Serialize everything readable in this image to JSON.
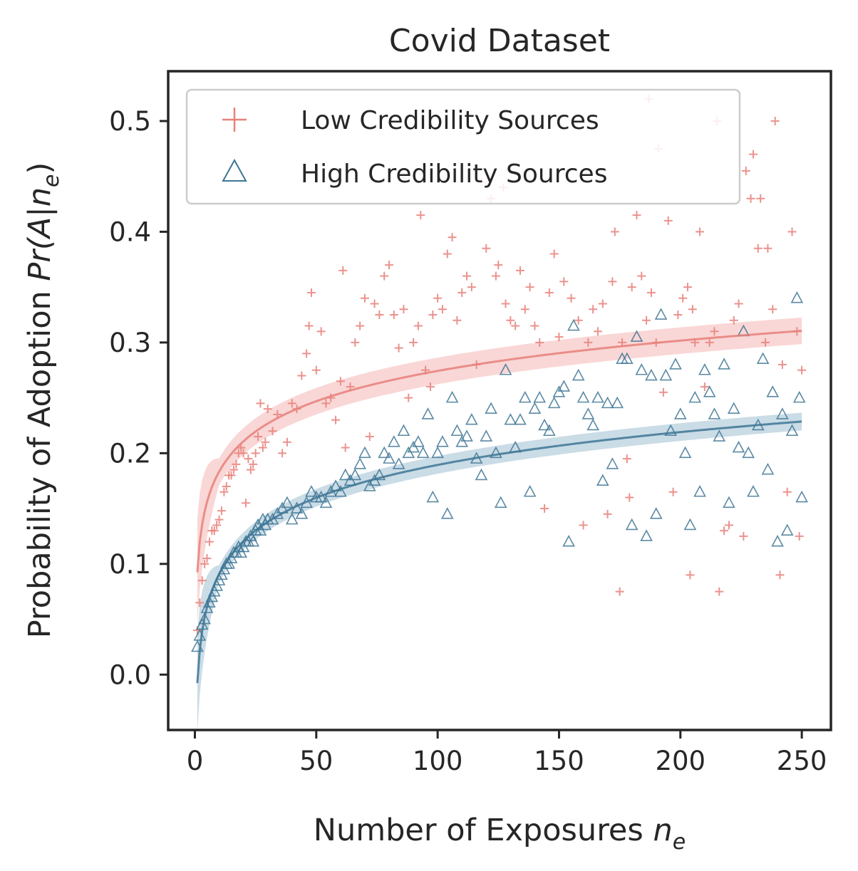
{
  "chart_data": {
    "type": "scatter",
    "title": "Covid Dataset",
    "xlabel": "Number of Exposures",
    "xlabel_var": "n",
    "xlabel_sub": "e",
    "ylabel": "Probability of Adoption",
    "ylabel_var": "Pr(A|n",
    "ylabel_sub": "e",
    "ylabel_close": ")",
    "xlim": [
      -11,
      262
    ],
    "ylim": [
      -0.05,
      0.545
    ],
    "xticks": [
      0,
      50,
      100,
      150,
      200,
      250
    ],
    "xtick_labels": [
      "0",
      "50",
      "100",
      "150",
      "200",
      "250"
    ],
    "yticks": [
      0.0,
      0.1,
      0.2,
      0.3,
      0.4,
      0.5
    ],
    "ytick_labels": [
      "0.0",
      "0.1",
      "0.2",
      "0.3",
      "0.4",
      "0.5"
    ],
    "legend_position": "upper-left",
    "colors": {
      "low": "#e8807a",
      "high": "#3e7694",
      "low_band": "#f4b6b4",
      "high_band": "#9fbfd1"
    },
    "series": [
      {
        "name": "Low Credibility Sources",
        "marker": "plus",
        "points": [
          [
            1,
            0.04
          ],
          [
            2,
            0.065
          ],
          [
            3,
            0.085
          ],
          [
            4,
            0.1
          ],
          [
            5,
            0.105
          ],
          [
            6,
            0.12
          ],
          [
            7,
            0.13
          ],
          [
            8,
            0.13
          ],
          [
            9,
            0.135
          ],
          [
            10,
            0.14
          ],
          [
            11,
            0.148
          ],
          [
            12,
            0.165
          ],
          [
            13,
            0.17
          ],
          [
            14,
            0.18
          ],
          [
            15,
            0.18
          ],
          [
            16,
            0.185
          ],
          [
            17,
            0.19
          ],
          [
            18,
            0.2
          ],
          [
            19,
            0.205
          ],
          [
            20,
            0.2
          ],
          [
            21,
            0.155
          ],
          [
            22,
            0.195
          ],
          [
            23,
            0.185
          ],
          [
            24,
            0.19
          ],
          [
            25,
            0.2
          ],
          [
            26,
            0.215
          ],
          [
            27,
            0.245
          ],
          [
            28,
            0.205
          ],
          [
            29,
            0.21
          ],
          [
            30,
            0.24
          ],
          [
            32,
            0.22
          ],
          [
            34,
            0.235
          ],
          [
            36,
            0.2
          ],
          [
            38,
            0.21
          ],
          [
            40,
            0.245
          ],
          [
            42,
            0.24
          ],
          [
            44,
            0.27
          ],
          [
            46,
            0.29
          ],
          [
            47,
            0.315
          ],
          [
            48,
            0.345
          ],
          [
            50,
            0.275
          ],
          [
            52,
            0.31
          ],
          [
            54,
            0.245
          ],
          [
            56,
            0.25
          ],
          [
            58,
            0.23
          ],
          [
            60,
            0.265
          ],
          [
            61,
            0.365
          ],
          [
            62,
            0.205
          ],
          [
            64,
            0.26
          ],
          [
            66,
            0.3
          ],
          [
            68,
            0.315
          ],
          [
            70,
            0.34
          ],
          [
            72,
            0.215
          ],
          [
            74,
            0.335
          ],
          [
            76,
            0.325
          ],
          [
            78,
            0.36
          ],
          [
            80,
            0.37
          ],
          [
            82,
            0.325
          ],
          [
            84,
            0.295
          ],
          [
            86,
            0.33
          ],
          [
            88,
            0.25
          ],
          [
            90,
            0.3
          ],
          [
            92,
            0.315
          ],
          [
            93,
            0.415
          ],
          [
            95,
            0.275
          ],
          [
            97,
            0.26
          ],
          [
            98,
            0.325
          ],
          [
            100,
            0.34
          ],
          [
            102,
            0.33
          ],
          [
            104,
            0.38
          ],
          [
            106,
            0.395
          ],
          [
            108,
            0.32
          ],
          [
            110,
            0.345
          ],
          [
            112,
            0.36
          ],
          [
            114,
            0.35
          ],
          [
            116,
            0.28
          ],
          [
            118,
            0.445
          ],
          [
            120,
            0.385
          ],
          [
            122,
            0.43
          ],
          [
            124,
            0.36
          ],
          [
            125,
            0.37
          ],
          [
            127,
            0.44
          ],
          [
            128,
            0.335
          ],
          [
            130,
            0.32
          ],
          [
            132,
            0.315
          ],
          [
            134,
            0.365
          ],
          [
            136,
            0.33
          ],
          [
            138,
            0.35
          ],
          [
            140,
            0.315
          ],
          [
            142,
            0.3
          ],
          [
            144,
            0.15
          ],
          [
            146,
            0.345
          ],
          [
            148,
            0.38
          ],
          [
            150,
            0.305
          ],
          [
            152,
            0.355
          ],
          [
            155,
            0.34
          ],
          [
            158,
            0.32
          ],
          [
            160,
            0.135
          ],
          [
            162,
            0.3
          ],
          [
            164,
            0.33
          ],
          [
            166,
            0.31
          ],
          [
            168,
            0.335
          ],
          [
            170,
            0.145
          ],
          [
            172,
            0.355
          ],
          [
            173,
            0.4
          ],
          [
            175,
            0.075
          ],
          [
            176,
            0.3
          ],
          [
            178,
            0.195
          ],
          [
            179,
            0.16
          ],
          [
            180,
            0.35
          ],
          [
            182,
            0.415
          ],
          [
            184,
            0.36
          ],
          [
            186,
            0.32
          ],
          [
            187,
            0.52
          ],
          [
            188,
            0.345
          ],
          [
            190,
            0.3
          ],
          [
            191,
            0.475
          ],
          [
            193,
            0.255
          ],
          [
            195,
            0.41
          ],
          [
            197,
            0.165
          ],
          [
            199,
            0.325
          ],
          [
            201,
            0.34
          ],
          [
            203,
            0.35
          ],
          [
            204,
            0.09
          ],
          [
            205,
            0.33
          ],
          [
            206,
            0.3
          ],
          [
            208,
            0.4
          ],
          [
            210,
            0.26
          ],
          [
            212,
            0.3
          ],
          [
            214,
            0.31
          ],
          [
            215,
            0.5
          ],
          [
            216,
            0.075
          ],
          [
            218,
            0.13
          ],
          [
            220,
            0.135
          ],
          [
            222,
            0.32
          ],
          [
            224,
            0.335
          ],
          [
            226,
            0.125
          ],
          [
            227,
            0.455
          ],
          [
            229,
            0.43
          ],
          [
            230,
            0.47
          ],
          [
            232,
            0.385
          ],
          [
            233,
            0.43
          ],
          [
            235,
            0.3
          ],
          [
            236,
            0.385
          ],
          [
            238,
            0.33
          ],
          [
            239,
            0.5
          ],
          [
            241,
            0.09
          ],
          [
            242,
            0.28
          ],
          [
            244,
            0.165
          ],
          [
            246,
            0.4
          ],
          [
            248,
            0.31
          ],
          [
            249,
            0.125
          ],
          [
            250,
            0.275
          ]
        ]
      },
      {
        "name": "High Credibility Sources",
        "marker": "triangle",
        "points": [
          [
            1,
            0.025
          ],
          [
            2,
            0.035
          ],
          [
            3,
            0.045
          ],
          [
            4,
            0.05
          ],
          [
            5,
            0.06
          ],
          [
            6,
            0.065
          ],
          [
            7,
            0.07
          ],
          [
            8,
            0.075
          ],
          [
            9,
            0.08
          ],
          [
            10,
            0.085
          ],
          [
            11,
            0.09
          ],
          [
            12,
            0.095
          ],
          [
            13,
            0.1
          ],
          [
            14,
            0.1
          ],
          [
            15,
            0.105
          ],
          [
            16,
            0.11
          ],
          [
            17,
            0.11
          ],
          [
            18,
            0.115
          ],
          [
            19,
            0.11
          ],
          [
            20,
            0.115
          ],
          [
            21,
            0.12
          ],
          [
            22,
            0.12
          ],
          [
            23,
            0.125
          ],
          [
            24,
            0.12
          ],
          [
            25,
            0.13
          ],
          [
            26,
            0.135
          ],
          [
            27,
            0.13
          ],
          [
            28,
            0.14
          ],
          [
            29,
            0.135
          ],
          [
            30,
            0.14
          ],
          [
            32,
            0.14
          ],
          [
            34,
            0.145
          ],
          [
            36,
            0.15
          ],
          [
            38,
            0.155
          ],
          [
            40,
            0.14
          ],
          [
            42,
            0.15
          ],
          [
            44,
            0.145
          ],
          [
            46,
            0.155
          ],
          [
            48,
            0.165
          ],
          [
            50,
            0.16
          ],
          [
            52,
            0.16
          ],
          [
            54,
            0.155
          ],
          [
            56,
            0.165
          ],
          [
            58,
            0.17
          ],
          [
            60,
            0.165
          ],
          [
            62,
            0.18
          ],
          [
            64,
            0.175
          ],
          [
            66,
            0.18
          ],
          [
            68,
            0.19
          ],
          [
            70,
            0.2
          ],
          [
            72,
            0.17
          ],
          [
            74,
            0.175
          ],
          [
            76,
            0.18
          ],
          [
            78,
            0.2
          ],
          [
            80,
            0.195
          ],
          [
            82,
            0.21
          ],
          [
            84,
            0.19
          ],
          [
            86,
            0.22
          ],
          [
            88,
            0.2
          ],
          [
            90,
            0.205
          ],
          [
            92,
            0.21
          ],
          [
            94,
            0.2
          ],
          [
            96,
            0.235
          ],
          [
            98,
            0.16
          ],
          [
            100,
            0.2
          ],
          [
            102,
            0.21
          ],
          [
            104,
            0.145
          ],
          [
            106,
            0.25
          ],
          [
            108,
            0.22
          ],
          [
            110,
            0.21
          ],
          [
            112,
            0.215
          ],
          [
            114,
            0.23
          ],
          [
            116,
            0.195
          ],
          [
            118,
            0.18
          ],
          [
            120,
            0.215
          ],
          [
            122,
            0.24
          ],
          [
            124,
            0.2
          ],
          [
            126,
            0.155
          ],
          [
            128,
            0.275
          ],
          [
            130,
            0.23
          ],
          [
            132,
            0.205
          ],
          [
            134,
            0.23
          ],
          [
            136,
            0.25
          ],
          [
            138,
            0.165
          ],
          [
            140,
            0.24
          ],
          [
            142,
            0.25
          ],
          [
            144,
            0.225
          ],
          [
            146,
            0.22
          ],
          [
            148,
            0.245
          ],
          [
            150,
            0.255
          ],
          [
            152,
            0.26
          ],
          [
            154,
            0.12
          ],
          [
            156,
            0.315
          ],
          [
            158,
            0.27
          ],
          [
            160,
            0.25
          ],
          [
            162,
            0.235
          ],
          [
            164,
            0.225
          ],
          [
            166,
            0.25
          ],
          [
            168,
            0.175
          ],
          [
            170,
            0.245
          ],
          [
            172,
            0.19
          ],
          [
            174,
            0.245
          ],
          [
            176,
            0.285
          ],
          [
            178,
            0.285
          ],
          [
            180,
            0.135
          ],
          [
            182,
            0.305
          ],
          [
            184,
            0.275
          ],
          [
            186,
            0.125
          ],
          [
            188,
            0.27
          ],
          [
            190,
            0.145
          ],
          [
            192,
            0.325
          ],
          [
            194,
            0.27
          ],
          [
            196,
            0.22
          ],
          [
            198,
            0.28
          ],
          [
            200,
            0.235
          ],
          [
            202,
            0.2
          ],
          [
            204,
            0.135
          ],
          [
            206,
            0.25
          ],
          [
            208,
            0.165
          ],
          [
            210,
            0.275
          ],
          [
            212,
            0.255
          ],
          [
            214,
            0.235
          ],
          [
            216,
            0.215
          ],
          [
            218,
            0.28
          ],
          [
            220,
            0.155
          ],
          [
            222,
            0.24
          ],
          [
            224,
            0.205
          ],
          [
            226,
            0.31
          ],
          [
            228,
            0.2
          ],
          [
            230,
            0.165
          ],
          [
            232,
            0.225
          ],
          [
            234,
            0.285
          ],
          [
            236,
            0.185
          ],
          [
            238,
            0.255
          ],
          [
            240,
            0.12
          ],
          [
            242,
            0.235
          ],
          [
            244,
            0.13
          ],
          [
            246,
            0.22
          ],
          [
            248,
            0.34
          ],
          [
            249,
            0.25
          ],
          [
            250,
            0.16
          ]
        ]
      }
    ],
    "fits": [
      {
        "series": "Low Credibility Sources",
        "a": 0.0924,
        "b": 0.0395,
        "band": 0.012
      },
      {
        "series": "High Credibility Sources",
        "a": -0.0077,
        "b": 0.0428,
        "band": 0.008
      }
    ]
  }
}
